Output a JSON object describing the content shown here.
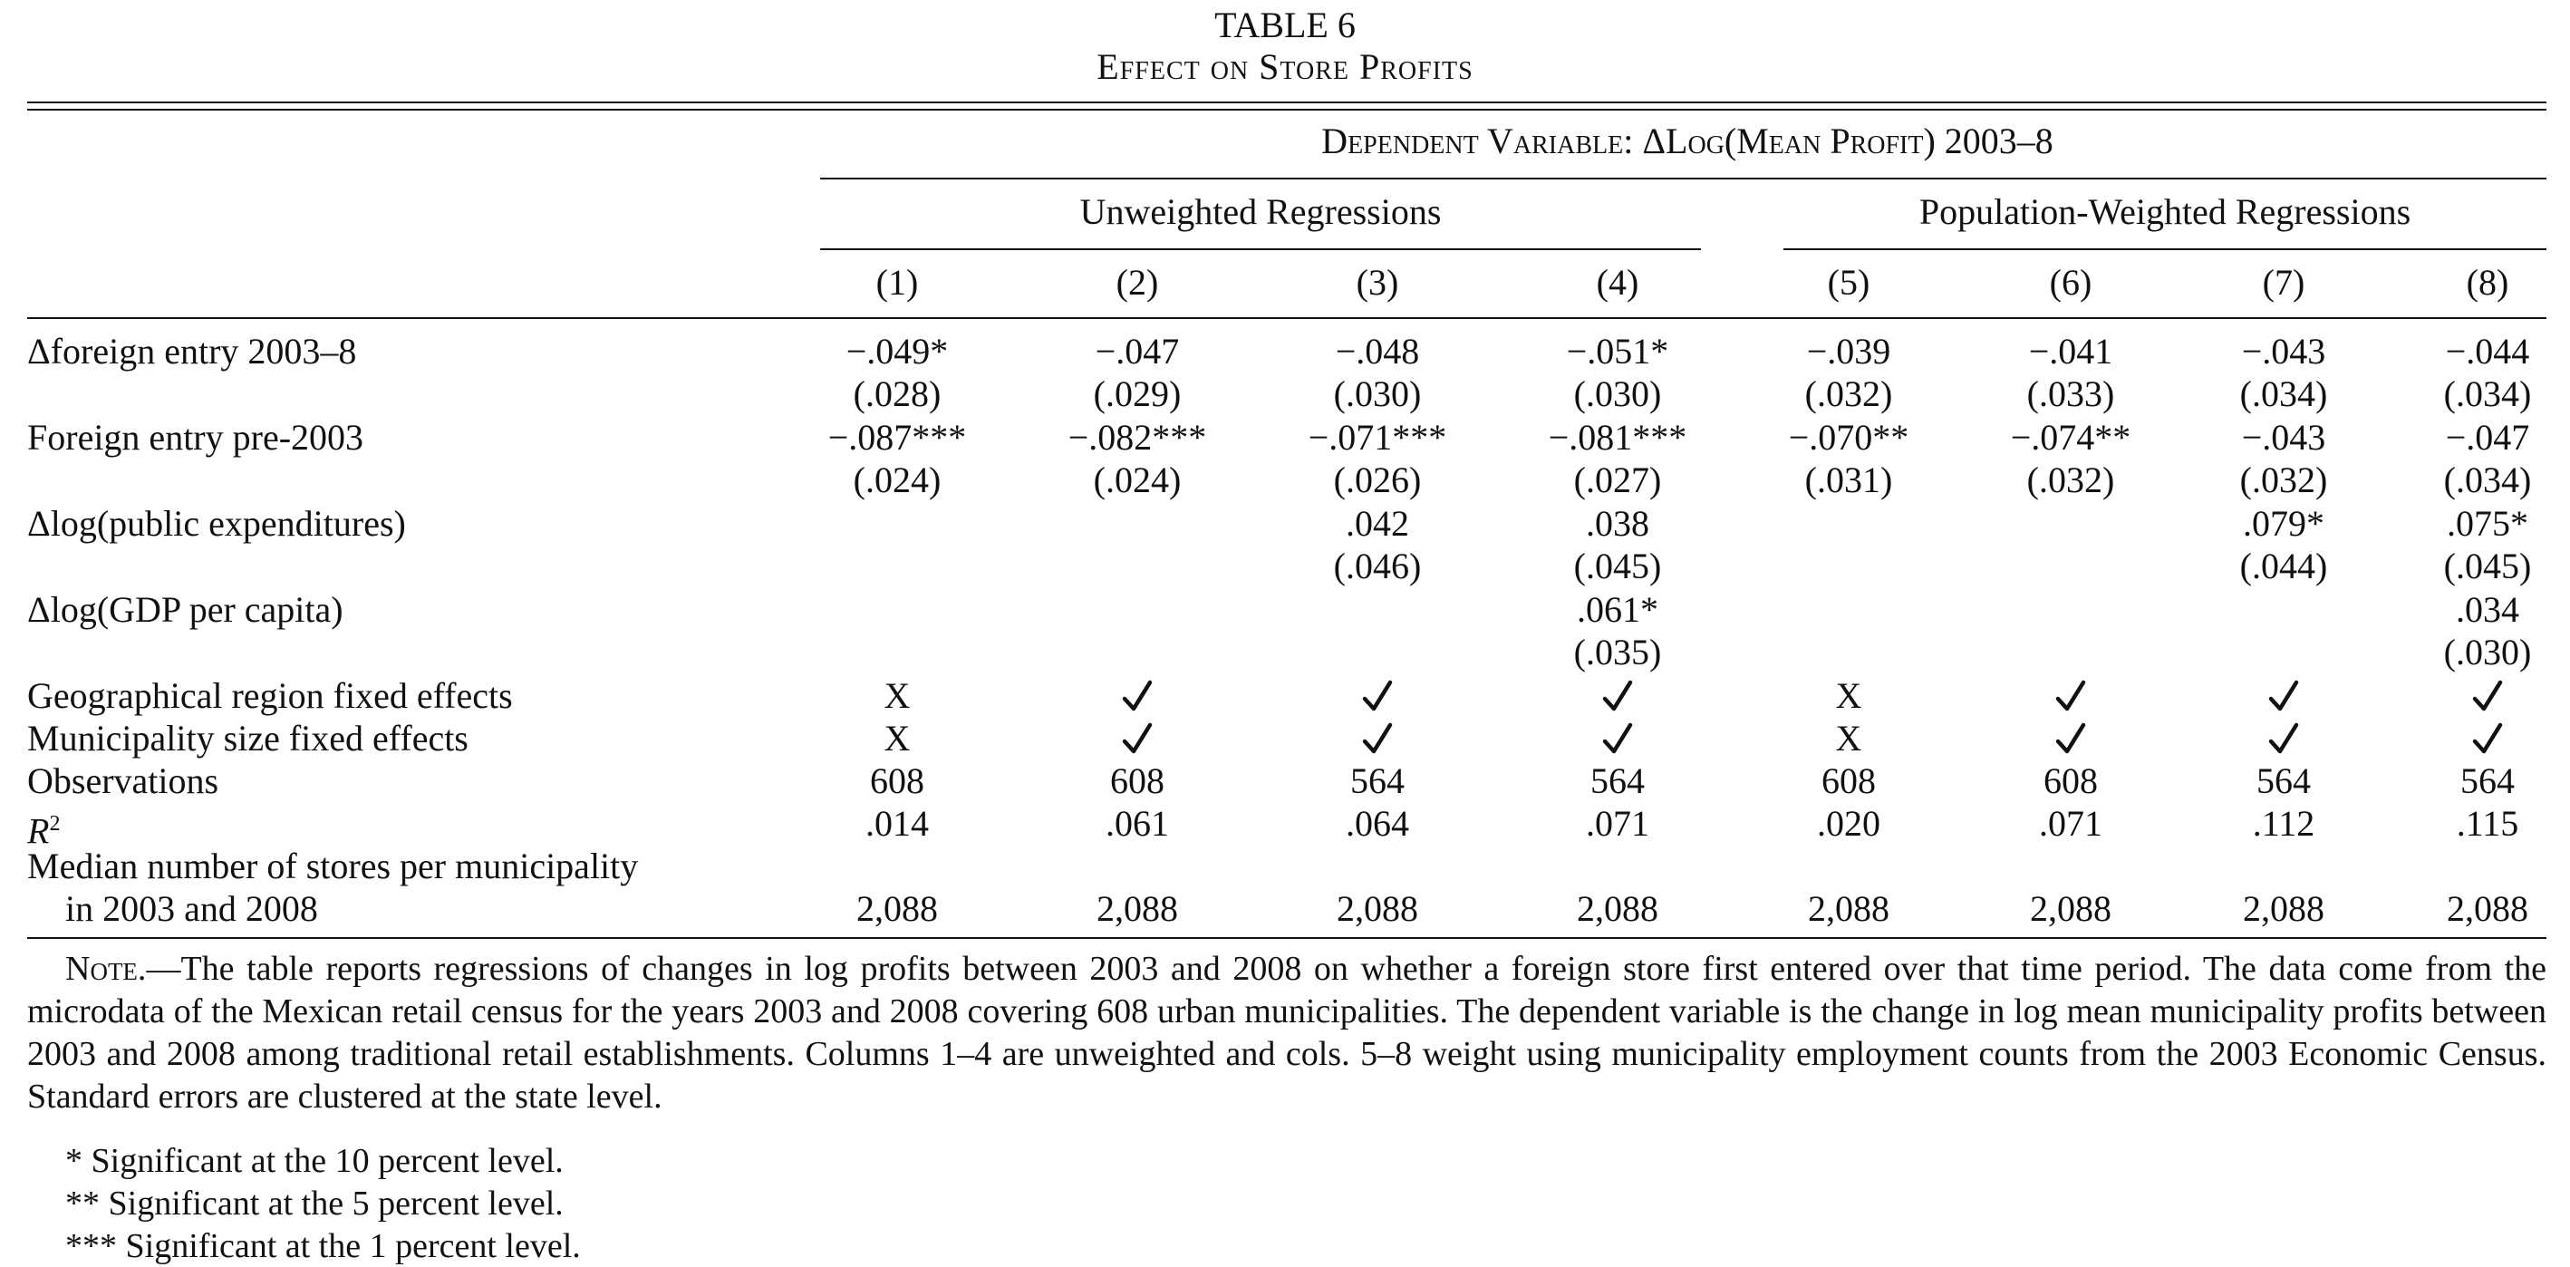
{
  "table": {
    "label": "TABLE 6",
    "caption": "Effect on Store Profits",
    "dependent_variable": "Dependent Variable: ΔLog(Mean Profit) 2003–8",
    "groups": [
      "Unweighted Regressions",
      "Population-Weighted Regressions"
    ],
    "columns": [
      "(1)",
      "(2)",
      "(3)",
      "(4)",
      "(5)",
      "(6)",
      "(7)",
      "(8)"
    ],
    "rows": {
      "foreign_entry": {
        "label": "Δforeign entry 2003–8",
        "coef": [
          "−.049*",
          "−.047",
          "−.048",
          "−.051*",
          "−.039",
          "−.041",
          "−.043",
          "−.044"
        ],
        "se": [
          "(.028)",
          "(.029)",
          "(.030)",
          "(.030)",
          "(.032)",
          "(.033)",
          "(.034)",
          "(.034)"
        ]
      },
      "pre2003": {
        "label": "Foreign entry pre-2003",
        "coef": [
          "−.087***",
          "−.082***",
          "−.071***",
          "−.081***",
          "−.070**",
          "−.074**",
          "−.043",
          "−.047"
        ],
        "se": [
          "(.024)",
          "(.024)",
          "(.026)",
          "(.027)",
          "(.031)",
          "(.032)",
          "(.032)",
          "(.034)"
        ]
      },
      "public_exp": {
        "label": "Δlog(public expenditures)",
        "coef": [
          "",
          "",
          ".042",
          ".038",
          "",
          "",
          ".079*",
          ".075*"
        ],
        "se": [
          "",
          "",
          "(.046)",
          "(.045)",
          "",
          "",
          "(.044)",
          "(.045)"
        ]
      },
      "gdp": {
        "label": "Δlog(GDP per capita)",
        "coef": [
          "",
          "",
          "",
          ".061*",
          "",
          "",
          "",
          ".034"
        ],
        "se": [
          "",
          "",
          "",
          "(.035)",
          "",
          "",
          "",
          "(.030)"
        ]
      },
      "geo_fe": {
        "label": "Geographical region fixed effects",
        "values": [
          "X",
          "check",
          "check",
          "check",
          "X",
          "check",
          "check",
          "check"
        ]
      },
      "muni_fe": {
        "label": "Municipality size fixed effects",
        "values": [
          "X",
          "check",
          "check",
          "check",
          "X",
          "check",
          "check",
          "check"
        ]
      },
      "obs": {
        "label": "Observations",
        "values": [
          "608",
          "608",
          "564",
          "564",
          "608",
          "608",
          "564",
          "564"
        ]
      },
      "r2": {
        "label_italic": "R",
        "label_sup": "2",
        "values": [
          ".014",
          ".061",
          ".064",
          ".071",
          ".020",
          ".071",
          ".112",
          ".115"
        ]
      },
      "median": {
        "label_line1": "Median number of stores per municipality",
        "label_line2": "in 2003 and 2008",
        "values": [
          "2,088",
          "2,088",
          "2,088",
          "2,088",
          "2,088",
          "2,088",
          "2,088",
          "2,088"
        ]
      }
    },
    "note": {
      "lead": "Note.",
      "text": "—The table reports regressions of changes in log profits between 2003 and 2008 on whether a foreign store first entered over that time period. The data come from the microdata of the Mexican retail census for the years 2003 and 2008 covering 608 urban municipalities. The dependent variable is the change in log mean municipality profits between 2003 and 2008 among traditional retail establishments. Columns 1–4 are unweighted and cols. 5–8 weight using municipality employment counts from the 2003 Economic Census. Standard errors are clustered at the state level."
    },
    "footnotes": [
      "*  Significant at the 10 percent level.",
      "**  Significant at the 5 percent level.",
      "***  Significant at the 1 percent level."
    ]
  },
  "icons": {
    "check": "check-mark-icon"
  }
}
